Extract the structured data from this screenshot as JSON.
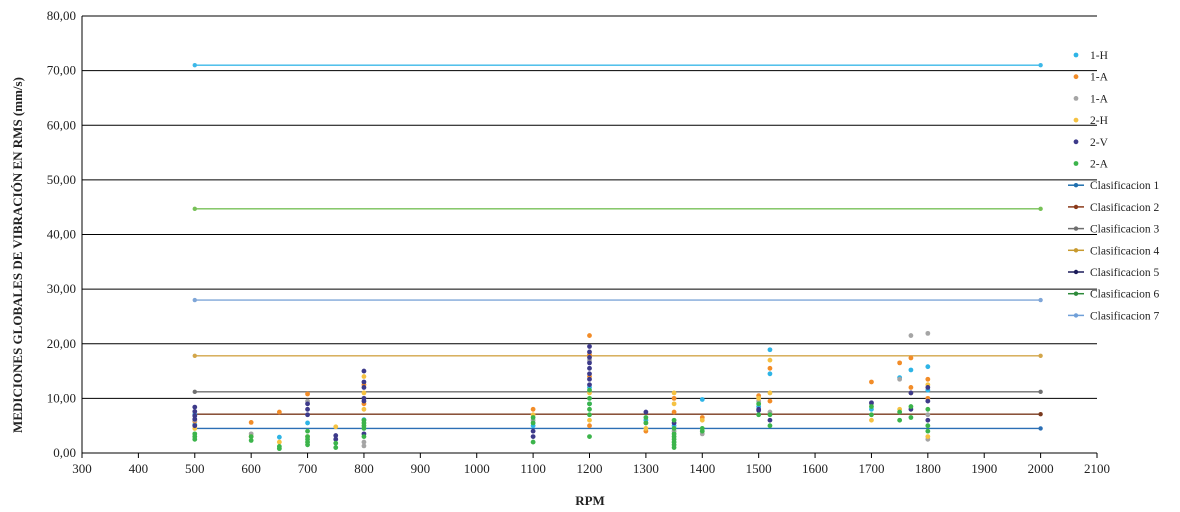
{
  "chart_data": {
    "type": "scatter",
    "title": "",
    "xlabel": "RPM",
    "ylabel": "MEDICIONES GLOBALES DE VIBRACIÓN EN RMS (mm/s)",
    "xlim": [
      300,
      2100
    ],
    "ylim": [
      0,
      80
    ],
    "x_ticks": [
      "300",
      "400",
      "500",
      "600",
      "700",
      "800",
      "900",
      "1000",
      "1100",
      "1200",
      "1300",
      "1400",
      "1500",
      "1600",
      "1700",
      "1800",
      "1900",
      "2000",
      "2100"
    ],
    "x_tick_values": [
      300,
      400,
      500,
      600,
      700,
      800,
      900,
      1000,
      1100,
      1200,
      1300,
      1400,
      1500,
      1600,
      1700,
      1800,
      1900,
      2000,
      2100
    ],
    "y_ticks": [
      "0,00",
      "10,00",
      "20,00",
      "30,00",
      "40,00",
      "50,00",
      "60,00",
      "70,00",
      "80,00"
    ],
    "y_tick_values": [
      0,
      10,
      20,
      30,
      40,
      50,
      60,
      70,
      80
    ],
    "grid": "horizontal",
    "legend_position": "right",
    "scatter_series": [
      {
        "name": "1-H",
        "color": "#2eb4e6",
        "points": [
          [
            500,
            7.0
          ],
          [
            500,
            5.2
          ],
          [
            650,
            2.9
          ],
          [
            700,
            5.5
          ],
          [
            800,
            6.1
          ],
          [
            1100,
            5.0
          ],
          [
            1200,
            12.0
          ],
          [
            1200,
            9.0
          ],
          [
            1300,
            6.0
          ],
          [
            1350,
            5.0
          ],
          [
            1400,
            9.8
          ],
          [
            1500,
            8.5
          ],
          [
            1520,
            18.9
          ],
          [
            1520,
            14.5
          ],
          [
            1700,
            8.0
          ],
          [
            1750,
            13.8
          ],
          [
            1770,
            15.2
          ],
          [
            1800,
            15.8
          ],
          [
            1800,
            11.5
          ]
        ]
      },
      {
        "name": "1-A",
        "color": "#f28c28",
        "points": [
          [
            500,
            5.8
          ],
          [
            600,
            5.6
          ],
          [
            650,
            7.5
          ],
          [
            700,
            10.8
          ],
          [
            800,
            9.0
          ],
          [
            800,
            12.5
          ],
          [
            1100,
            8.0
          ],
          [
            1200,
            21.5
          ],
          [
            1200,
            18.0
          ],
          [
            1200,
            14.0
          ],
          [
            1200,
            5.0
          ],
          [
            1300,
            4.0
          ],
          [
            1350,
            10.0
          ],
          [
            1350,
            7.5
          ],
          [
            1400,
            6.5
          ],
          [
            1500,
            10.5
          ],
          [
            1520,
            15.5
          ],
          [
            1520,
            9.5
          ],
          [
            1700,
            13.0
          ],
          [
            1750,
            16.5
          ],
          [
            1770,
            17.4
          ],
          [
            1770,
            12.0
          ],
          [
            1800,
            13.5
          ],
          [
            1800,
            10.0
          ]
        ]
      },
      {
        "name": "1-A",
        "color": "#a5a5a5",
        "points": [
          [
            500,
            6.0
          ],
          [
            600,
            3.5
          ],
          [
            700,
            9.5
          ],
          [
            800,
            2.0
          ],
          [
            800,
            1.3
          ],
          [
            1100,
            6.0
          ],
          [
            1200,
            17.0
          ],
          [
            1300,
            5.5
          ],
          [
            1350,
            4.0
          ],
          [
            1400,
            3.5
          ],
          [
            1500,
            9.5
          ],
          [
            1520,
            7.5
          ],
          [
            1700,
            9.0
          ],
          [
            1750,
            13.5
          ],
          [
            1770,
            21.5
          ],
          [
            1800,
            21.9
          ],
          [
            1800,
            7.0
          ],
          [
            1800,
            2.5
          ]
        ]
      },
      {
        "name": "2-H",
        "color": "#f5c242",
        "points": [
          [
            500,
            4.5
          ],
          [
            600,
            3.0
          ],
          [
            650,
            2.0
          ],
          [
            700,
            3.0
          ],
          [
            750,
            4.8
          ],
          [
            800,
            14.0
          ],
          [
            800,
            11.0
          ],
          [
            800,
            8.0
          ],
          [
            1100,
            7.0
          ],
          [
            1200,
            11.0
          ],
          [
            1200,
            6.0
          ],
          [
            1300,
            4.5
          ],
          [
            1350,
            11.0
          ],
          [
            1350,
            9.0
          ],
          [
            1400,
            6.0
          ],
          [
            1500,
            10.0
          ],
          [
            1520,
            17.0
          ],
          [
            1520,
            11.0
          ],
          [
            1700,
            6.0
          ],
          [
            1750,
            8.0
          ],
          [
            1770,
            11.0
          ],
          [
            1800,
            12.5
          ],
          [
            1800,
            3.0
          ]
        ]
      },
      {
        "name": "2-V",
        "color": "#3d3a8a",
        "points": [
          [
            500,
            8.4
          ],
          [
            500,
            7.6
          ],
          [
            500,
            6.8
          ],
          [
            500,
            6.2
          ],
          [
            500,
            5.0
          ],
          [
            700,
            9.0
          ],
          [
            700,
            8.0
          ],
          [
            700,
            7.0
          ],
          [
            750,
            3.2
          ],
          [
            750,
            2.5
          ],
          [
            800,
            15.0
          ],
          [
            800,
            13.0
          ],
          [
            800,
            12.0
          ],
          [
            800,
            10.0
          ],
          [
            800,
            9.5
          ],
          [
            800,
            3.5
          ],
          [
            1100,
            4.0
          ],
          [
            1100,
            3.0
          ],
          [
            1200,
            19.5
          ],
          [
            1200,
            18.5
          ],
          [
            1200,
            17.5
          ],
          [
            1200,
            16.5
          ],
          [
            1200,
            15.5
          ],
          [
            1200,
            14.5
          ],
          [
            1200,
            13.5
          ],
          [
            1200,
            12.5
          ],
          [
            1300,
            7.5
          ],
          [
            1350,
            5.5
          ],
          [
            1500,
            8.0
          ],
          [
            1500,
            7.8
          ],
          [
            1520,
            6.0
          ],
          [
            1700,
            9.2
          ],
          [
            1770,
            11.0
          ],
          [
            1770,
            8.0
          ],
          [
            1800,
            12.0
          ],
          [
            1800,
            9.5
          ],
          [
            1800,
            6.0
          ]
        ]
      },
      {
        "name": "2-A",
        "color": "#3cb44b",
        "points": [
          [
            500,
            3.5
          ],
          [
            500,
            3.0
          ],
          [
            500,
            2.5
          ],
          [
            600,
            3.0
          ],
          [
            600,
            2.3
          ],
          [
            650,
            1.2
          ],
          [
            650,
            0.8
          ],
          [
            700,
            4.0
          ],
          [
            700,
            3.0
          ],
          [
            700,
            2.5
          ],
          [
            700,
            2.0
          ],
          [
            700,
            1.5
          ],
          [
            750,
            1.8
          ],
          [
            750,
            1.0
          ],
          [
            800,
            6.0
          ],
          [
            800,
            5.5
          ],
          [
            800,
            5.0
          ],
          [
            800,
            4.5
          ],
          [
            800,
            3.0
          ],
          [
            1100,
            6.5
          ],
          [
            1100,
            5.5
          ],
          [
            1100,
            2.0
          ],
          [
            1200,
            11.5
          ],
          [
            1200,
            10.0
          ],
          [
            1200,
            9.0
          ],
          [
            1200,
            8.0
          ],
          [
            1200,
            7.0
          ],
          [
            1200,
            3.0
          ],
          [
            1300,
            6.5
          ],
          [
            1300,
            5.5
          ],
          [
            1350,
            6.0
          ],
          [
            1350,
            4.5
          ],
          [
            1350,
            3.5
          ],
          [
            1350,
            3.0
          ],
          [
            1350,
            2.5
          ],
          [
            1350,
            2.0
          ],
          [
            1350,
            1.5
          ],
          [
            1350,
            1.0
          ],
          [
            1400,
            4.5
          ],
          [
            1400,
            4.0
          ],
          [
            1500,
            9.0
          ],
          [
            1500,
            7.0
          ],
          [
            1520,
            7.0
          ],
          [
            1520,
            5.0
          ],
          [
            1700,
            8.5
          ],
          [
            1700,
            7.0
          ],
          [
            1750,
            7.5
          ],
          [
            1750,
            6.0
          ],
          [
            1770,
            8.5
          ],
          [
            1770,
            6.5
          ],
          [
            1800,
            8.0
          ],
          [
            1800,
            5.0
          ],
          [
            1800,
            4.0
          ]
        ]
      }
    ],
    "line_series": [
      {
        "name": "Clasificacion 1",
        "color": "#1f6fae",
        "x": [
          500,
          2000
        ],
        "y": [
          4.5,
          4.5
        ]
      },
      {
        "name": "Clasificacion 2",
        "color": "#8b3a1a",
        "x": [
          500,
          2000
        ],
        "y": [
          7.1,
          7.1
        ]
      },
      {
        "name": "Clasificacion 3",
        "color": "#6e6e6e",
        "x": [
          500,
          2000
        ],
        "y": [
          11.2,
          11.2
        ]
      },
      {
        "name": "Clasificacion 4",
        "color": "#c89a2e",
        "x": [
          500,
          2000
        ],
        "y": [
          18.0,
          18.0
        ]
      },
      {
        "name": "Clasificacion 5",
        "color": "#1c1c5a",
        "x": [
          500,
          2000
        ],
        "y": [
          28.0,
          28.0
        ]
      },
      {
        "name": "Clasificacion 6",
        "color": "#2d8a3a",
        "x": [
          500,
          2000
        ],
        "y": [
          45.0,
          45.0
        ]
      },
      {
        "name": "Clasificacion 7",
        "color": "#6f9fd8",
        "x": [
          500,
          2000
        ],
        "y": [
          71.0,
          71.0
        ]
      }
    ],
    "overlay_line_colors": [
      "#3cb8e8",
      "#77c157",
      "#7fa6d8",
      "#d3a64a",
      "#707070",
      "#7a3a1e",
      "#2b6fb5"
    ],
    "overlay_lines_y": [
      71.0,
      44.7,
      28.0,
      17.8,
      11.2,
      7.1,
      4.5
    ]
  }
}
